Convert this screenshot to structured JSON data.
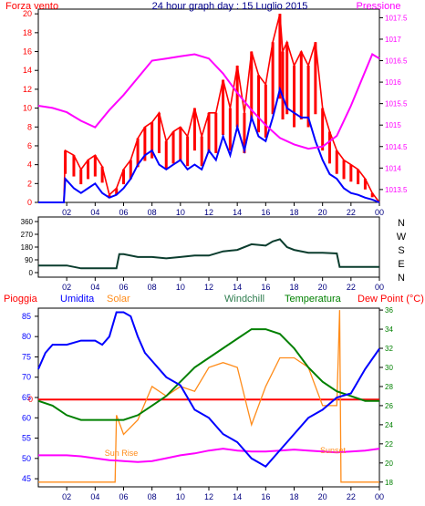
{
  "top_panel": {
    "title": "24 hour graph day : 15 Luglio 2015",
    "left_label": "Forza vento",
    "right_label": "Pressione"
  },
  "wind_dir_panel": {
    "compass_letters": [
      "N",
      "W",
      "S",
      "E",
      "N"
    ]
  },
  "bottom_panel": {
    "header_labels": [
      "Pioggia",
      "Umidita",
      "Solar",
      "Windchill",
      "Temperatura",
      "Dew Point (°C)"
    ],
    "sunrise_label": "Sun Rise",
    "sunset_label": "Sunset"
  },
  "colors": {
    "wind_gust": "#ff0000",
    "wind_avg": "#0000ff",
    "pressure": "#ff00ff",
    "wind_direction": "#0b3d2e",
    "rain": "#ff0000",
    "humidity": "#0000ff",
    "solar": "#ff8c1a",
    "windchill": "#2e7d4f",
    "temperature": "#008000",
    "dewpoint": "#ff00ff",
    "axis_left": "#ff0000",
    "axis_right": "#ff00ff",
    "humidity_axis": "#0000ff",
    "temp_axis": "#008000"
  },
  "chart_data": [
    {
      "type": "line",
      "x_ticks": [
        "02",
        "04",
        "06",
        "08",
        "10",
        "12",
        "14",
        "16",
        "18",
        "20",
        "22",
        "00"
      ],
      "xlim": [
        0,
        24
      ],
      "y_left_ticks": [
        "0",
        "2",
        "4",
        "6",
        "8",
        "10",
        "12",
        "14",
        "16",
        "18",
        "20"
      ],
      "ylim_left": [
        0,
        20.5
      ],
      "y_right_ticks": [
        "1013.5",
        "1014",
        "1014.5",
        "1015",
        "1015.5",
        "1016",
        "1016.5",
        "1017",
        "1017.5"
      ],
      "ylim_right": [
        1013.2,
        1017.7
      ],
      "series": [
        {
          "axis": "left",
          "x": [
            0,
            1.8,
            1.9,
            2.5,
            3,
            3.5,
            4,
            4.5,
            5,
            5.5,
            6,
            6.5,
            7,
            7.5,
            8,
            8.5,
            9,
            9.5,
            10,
            10.5,
            11,
            11.5,
            12,
            12.5,
            13,
            13.5,
            14,
            14.5,
            15,
            15.5,
            16,
            16.5,
            17,
            17.2,
            17.5,
            18,
            18.5,
            19,
            19.5,
            20,
            20.5,
            21,
            21.5,
            22,
            22.5,
            23,
            23.5,
            24
          ],
          "y": [
            0,
            0,
            5.5,
            5,
            3.5,
            4.5,
            5,
            3.8,
            0.8,
            1.5,
            3.5,
            4.5,
            6.8,
            8,
            8.5,
            9.5,
            6.5,
            7.5,
            8,
            7,
            10,
            7,
            9.5,
            9.5,
            13,
            10,
            14.5,
            9.5,
            16,
            13.5,
            12.5,
            17,
            20,
            16,
            17,
            14.5,
            16,
            14.5,
            17,
            10,
            7.5,
            5.5,
            4.5,
            4,
            3.5,
            2.5,
            1,
            0
          ]
        },
        {
          "axis": "left",
          "x": [
            0,
            1.8,
            1.9,
            2.5,
            3,
            3.5,
            4,
            4.5,
            5,
            5.5,
            6,
            6.5,
            7,
            7.5,
            8,
            8.5,
            9,
            9.5,
            10,
            10.5,
            11,
            11.5,
            12,
            12.5,
            13,
            13.5,
            14,
            14.5,
            15,
            15.5,
            16,
            16.5,
            17,
            17.5,
            18,
            18.5,
            19,
            19.5,
            20,
            20.5,
            21,
            21.5,
            22,
            22.5,
            23,
            23.5,
            24
          ],
          "y": [
            0,
            0,
            2.5,
            1.5,
            1,
            1.5,
            2,
            1,
            0.5,
            0.8,
            1.5,
            2.5,
            4,
            5,
            5.5,
            4,
            3.5,
            4,
            4.5,
            3.5,
            4,
            3.5,
            5.5,
            4.5,
            7,
            5,
            8,
            5.5,
            9,
            7,
            6.5,
            9,
            12,
            10,
            9.5,
            9,
            9,
            6.5,
            4.5,
            3,
            2.5,
            1.5,
            1,
            0.8,
            0.5,
            0.3,
            0
          ]
        },
        {
          "axis": "right",
          "x": [
            0,
            1,
            2,
            3,
            4,
            5,
            6,
            7,
            8,
            9,
            10,
            11,
            12,
            13,
            14,
            15,
            16,
            17,
            18,
            19,
            20,
            21,
            22,
            23,
            23.5,
            24
          ],
          "y": [
            1015.45,
            1015.4,
            1015.3,
            1015.1,
            1014.95,
            1015.35,
            1015.7,
            1016.1,
            1016.5,
            1016.55,
            1016.6,
            1016.65,
            1016.55,
            1016.2,
            1015.75,
            1015.35,
            1015.0,
            1014.7,
            1014.55,
            1014.45,
            1014.5,
            1014.75,
            1015.45,
            1016.25,
            1016.65,
            1016.55
          ]
        }
      ]
    },
    {
      "type": "line",
      "x_ticks": [
        "02",
        "04",
        "06",
        "08",
        "10",
        "12",
        "14",
        "16",
        "18",
        "20",
        "22",
        "00"
      ],
      "xlim": [
        0,
        24
      ],
      "y_ticks": [
        "0",
        "90",
        "180",
        "270",
        "360"
      ],
      "ylim": [
        0,
        360
      ],
      "series": [
        {
          "x": [
            0,
            1,
            2,
            3,
            4,
            5,
            5.5,
            5.7,
            6,
            7,
            8,
            9,
            10,
            11,
            12,
            13,
            14,
            15,
            16,
            16.5,
            17,
            17.5,
            18,
            19,
            20,
            21,
            21.2,
            22,
            23,
            24
          ],
          "y": [
            50,
            50,
            50,
            30,
            30,
            30,
            30,
            130,
            130,
            110,
            110,
            100,
            110,
            120,
            120,
            150,
            160,
            200,
            190,
            220,
            235,
            180,
            160,
            140,
            140,
            135,
            40,
            40,
            40,
            40
          ]
        }
      ]
    },
    {
      "type": "line",
      "x_ticks": [
        "02",
        "04",
        "06",
        "08",
        "10",
        "12",
        "14",
        "16",
        "18",
        "20",
        "22",
        "00"
      ],
      "xlim": [
        0,
        24
      ],
      "y_left_ticks": [
        "45",
        "50",
        "55",
        "60",
        "65",
        "70",
        "75",
        "80",
        "85"
      ],
      "ylim_left": [
        43,
        87
      ],
      "y_right_ticks": [
        "18",
        "20",
        "22",
        "24",
        "26",
        "28",
        "30",
        "32",
        "34",
        "36"
      ],
      "ylim_right": [
        17.5,
        36.2
      ],
      "rain_marker": "0",
      "series": [
        {
          "axis": "left",
          "x": [
            0,
            0.5,
            1,
            2,
            3,
            4,
            4.5,
            5,
            5.5,
            6,
            6.5,
            7,
            7.5,
            8,
            8.5,
            9,
            10,
            11,
            12,
            13,
            14,
            15,
            16,
            17,
            18,
            19,
            20,
            21,
            22,
            23,
            24
          ],
          "y": [
            72,
            76,
            78,
            78,
            79,
            79,
            78,
            80,
            86,
            86,
            85,
            80,
            76,
            74,
            72,
            70,
            68,
            62,
            60,
            56,
            54,
            50,
            48,
            52,
            56,
            60,
            62,
            65,
            66,
            72,
            77
          ]
        },
        {
          "axis": "right",
          "x": [
            0,
            5.4,
            5.5,
            6,
            7,
            8,
            9,
            10,
            11,
            12,
            13,
            14,
            15,
            16,
            17,
            18,
            19,
            20,
            21,
            21.2,
            21.3,
            24
          ],
          "y": [
            18,
            18,
            25,
            23,
            24.5,
            28,
            27,
            28,
            27.5,
            30,
            30.5,
            30,
            24,
            28,
            31,
            31,
            30,
            26,
            26,
            36,
            18,
            18
          ]
        },
        {
          "axis": "right",
          "x": [
            0,
            1,
            2,
            3,
            4,
            5,
            6,
            7,
            8,
            9,
            10,
            11,
            12,
            13,
            14,
            15,
            16,
            17,
            18,
            19,
            20,
            21,
            22,
            23,
            24
          ],
          "y": [
            26.5,
            26,
            25,
            24.5,
            24.5,
            24.5,
            24.5,
            25,
            26,
            27,
            28.5,
            30,
            31,
            32,
            33,
            34,
            34,
            33.5,
            32,
            30,
            28.5,
            27.5,
            27,
            26.5,
            26.5
          ]
        },
        {
          "axis": "right",
          "x": [
            0,
            1,
            2,
            3,
            4,
            5,
            6,
            7,
            8,
            9,
            10,
            11,
            12,
            13,
            14,
            15,
            16,
            17,
            18,
            19,
            20,
            21,
            22,
            23,
            24
          ],
          "y": [
            20.8,
            20.8,
            20.8,
            20.7,
            20.5,
            20.3,
            20.2,
            20.1,
            20.2,
            20.5,
            20.8,
            21,
            21.3,
            21.5,
            21.3,
            21.2,
            21.2,
            21.3,
            21.4,
            21.3,
            21.2,
            21.1,
            21.2,
            21.3,
            21.5
          ]
        }
      ]
    }
  ]
}
